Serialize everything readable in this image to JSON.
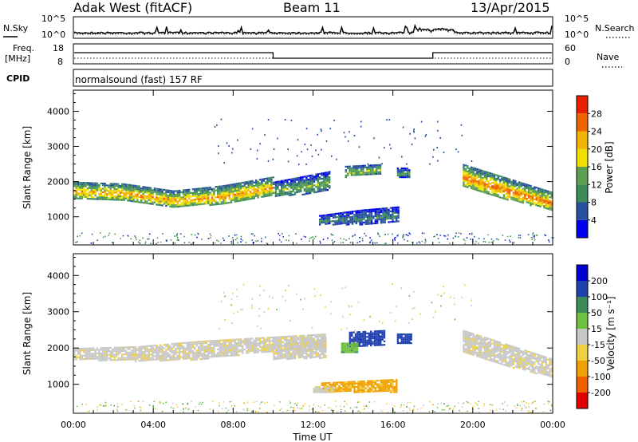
{
  "header": {
    "title": "Adak West (fitACF)",
    "beam": "Beam 11",
    "date": "13/Apr/2015"
  },
  "strip": {
    "nsky_label": "N.Sky",
    "nsearch_label": "N.Search",
    "noise_tick_top": "10^5",
    "noise_tick_bottom": "10^0",
    "freq_label_1": "Freq.",
    "freq_label_2": "[MHz]",
    "freq_ticks": [
      "18",
      "8"
    ],
    "nave_label": "Nave",
    "nave_ticks": [
      "60",
      "0"
    ],
    "cpid_label": "CPID",
    "cpid_text": "normalsound (fast) 157 RF"
  },
  "colors": {
    "power": [
      "#0000f0",
      "#2850a0",
      "#3c8c5a",
      "#5aa050",
      "#f0e000",
      "#f0b400",
      "#f06400",
      "#e82000"
    ],
    "velocity": [
      "#e00000",
      "#f06000",
      "#f0a000",
      "#f0d040",
      "#c8c8c8",
      "#70c040",
      "#3c8c5a",
      "#2040b0",
      "#0000d0"
    ]
  },
  "chart_data": [
    {
      "type": "heatmap",
      "name": "power",
      "ylabel": "Slant Range [km]",
      "yticks": [
        "1000",
        "2000",
        "3000",
        "4000"
      ],
      "ylim": [
        200,
        4600
      ],
      "xlim": [
        0,
        24
      ],
      "colorbar_label": "Power [dB]",
      "colorbar_ticks": [
        "4",
        "8",
        "12",
        "16",
        "20",
        "24",
        "28"
      ],
      "colorbar_range": [
        0,
        32
      ],
      "echo_bands": [
        {
          "t0": 0,
          "t1": 10,
          "r_low": [
            1550,
            1500,
            1300,
            1380,
            1650
          ],
          "r_high": [
            2000,
            1950,
            1750,
            1900,
            2150
          ],
          "level": 20
        },
        {
          "t0": 10,
          "t1": 12.8,
          "r_low": [
            1600,
            1650,
            1800
          ],
          "r_high": [
            2000,
            2150,
            2300
          ],
          "level": 12
        },
        {
          "t0": 13.6,
          "t1": 15.4,
          "r_low": [
            2150,
            2250
          ],
          "r_high": [
            2450,
            2500
          ],
          "level": 14
        },
        {
          "t0": 12.3,
          "t1": 16.3,
          "r_low": [
            800,
            800,
            850
          ],
          "r_high": [
            1050,
            1200,
            1300
          ],
          "level": 8
        },
        {
          "t0": 16.2,
          "t1": 16.8,
          "r_low": [
            2150
          ],
          "r_high": [
            2400
          ],
          "level": 10
        },
        {
          "t0": 19.5,
          "t1": 24,
          "r_low": [
            1900,
            1500,
            1200
          ],
          "r_high": [
            2500,
            2100,
            1700
          ],
          "level": 22
        }
      ]
    },
    {
      "type": "heatmap",
      "name": "velocity",
      "ylabel": "Slant Range [km]",
      "yticks": [
        "1000",
        "2000",
        "3000",
        "4000"
      ],
      "ylim": [
        200,
        4600
      ],
      "xlim": [
        0,
        24
      ],
      "xticks": [
        "00:00",
        "04:00",
        "08:00",
        "12:00",
        "16:00",
        "20:00",
        "00:00"
      ],
      "xlabel": "Time UT",
      "colorbar_label": "Velocity [m s⁻¹]",
      "colorbar_ticks": [
        "-200",
        "-100",
        "-50",
        "-15",
        "15",
        "50",
        "100",
        "200"
      ],
      "echo_bands": [
        {
          "t0": 0,
          "t1": 12.6,
          "r_low": [
            1700,
            1650,
            1700,
            1900,
            2000
          ],
          "r_high": [
            2000,
            2050,
            2200,
            2300,
            2400
          ],
          "v": -5
        },
        {
          "t0": 10,
          "t1": 12.6,
          "r_low": [
            1700,
            1750
          ],
          "r_high": [
            2100,
            2300
          ],
          "v": -5
        },
        {
          "t0": 13.8,
          "t1": 15.6,
          "r_low": [
            2050,
            2100
          ],
          "r_high": [
            2450,
            2500
          ],
          "v": 150
        },
        {
          "t0": 13.4,
          "t1": 14.2,
          "r_low": [
            1900
          ],
          "r_high": [
            2150
          ],
          "v": 40
        },
        {
          "t0": 16.2,
          "t1": 16.9,
          "r_low": [
            2150
          ],
          "r_high": [
            2400
          ],
          "v": 150
        },
        {
          "t0": 12.4,
          "t1": 16.2,
          "r_low": [
            800,
            800
          ],
          "r_high": [
            1050,
            1150
          ],
          "v": -60
        },
        {
          "t0": 12.0,
          "t1": 13.0,
          "r_low": [
            800
          ],
          "r_high": [
            950
          ],
          "v": -5
        },
        {
          "t0": 19.5,
          "t1": 24,
          "r_low": [
            1900,
            1500,
            1200
          ],
          "r_high": [
            2500,
            2100,
            1700
          ],
          "v": -5
        }
      ]
    }
  ]
}
